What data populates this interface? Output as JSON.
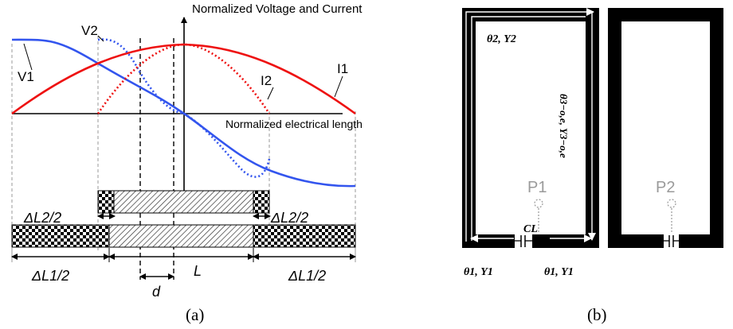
{
  "colors": {
    "v1": "#3355ee",
    "i1": "#ee1111",
    "black": "#000000",
    "gray": "#9a9a9a"
  },
  "panel_a": {
    "title": "Normalized Voltage and Current",
    "x_axis_label": "Normalized electrical length",
    "curve_labels": {
      "v1": "V1",
      "v2": "V2",
      "i1": "I1",
      "i2": "I2"
    },
    "dim_labels": {
      "dl2_left": "ΔL2/2",
      "dl2_right": "ΔL2/2",
      "dl1_left": "ΔL1/2",
      "dl1_right": "ΔL1/2",
      "L": "L",
      "d": "d"
    },
    "caption": "(a)"
  },
  "panel_b": {
    "labels": {
      "theta2": "θ2, Y2",
      "theta3": "θ3−o,e, Y3−o,e",
      "p1": "P1",
      "p2": "P2",
      "cl": "CL",
      "theta1_left": "θ1, Y1",
      "theta1_right": "θ1, Y1"
    },
    "caption": "(b)"
  }
}
